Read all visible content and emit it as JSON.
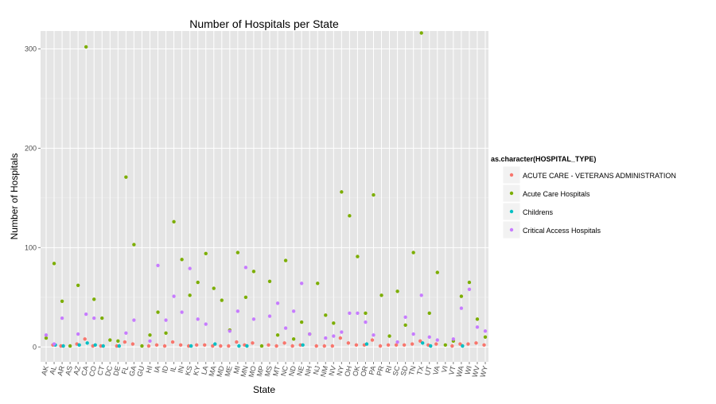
{
  "chart_data": {
    "type": "scatter",
    "title": "Number of Hospitals per State",
    "xlabel": "State",
    "ylabel": "Number of Hospitals",
    "ylim": [
      -15,
      318
    ],
    "yticks": [
      0,
      100,
      200,
      300
    ],
    "grid": true,
    "legend_position": "right",
    "legend_title": "as.character(HOSPITAL_TYPE)",
    "categories": [
      "AK",
      "AL",
      "AR",
      "AS",
      "AZ",
      "CA",
      "CO",
      "CT",
      "DC",
      "DE",
      "FL",
      "GA",
      "GU",
      "HI",
      "IA",
      "ID",
      "IL",
      "IN",
      "KS",
      "KY",
      "LA",
      "MA",
      "MD",
      "ME",
      "MI",
      "MN",
      "MO",
      "MP",
      "MS",
      "MT",
      "NC",
      "ND",
      "NE",
      "NH",
      "NJ",
      "NM",
      "NV",
      "NY",
      "OH",
      "OK",
      "OR",
      "PA",
      "PR",
      "RI",
      "SC",
      "SD",
      "TN",
      "TX",
      "UT",
      "VA",
      "VI",
      "VT",
      "WA",
      "WI",
      "WV",
      "WY"
    ],
    "series": [
      {
        "name": "ACUTE CARE - VETERANS ADMINISTRATION",
        "color": "#f8766d",
        "values": [
          null,
          2,
          1,
          null,
          3,
          8,
          1,
          1,
          null,
          1,
          5,
          3,
          null,
          1,
          2,
          1,
          5,
          2,
          1,
          2,
          2,
          1,
          1,
          1,
          5,
          2,
          4,
          null,
          2,
          1,
          4,
          1,
          2,
          null,
          1,
          1,
          1,
          9,
          4,
          2,
          2,
          7,
          1,
          2,
          2,
          2,
          3,
          6,
          2,
          3,
          null,
          1,
          3,
          3,
          4,
          2
        ]
      },
      {
        "name": "Acute Care Hospitals",
        "color": "#7cae00",
        "values": [
          9,
          84,
          46,
          1,
          62,
          302,
          48,
          29,
          7,
          6,
          171,
          103,
          1,
          12,
          35,
          14,
          126,
          88,
          52,
          65,
          94,
          59,
          47,
          17,
          95,
          50,
          76,
          1,
          66,
          12,
          87,
          8,
          25,
          13,
          64,
          32,
          24,
          156,
          132,
          91,
          34,
          153,
          52,
          11,
          56,
          22,
          95,
          316,
          34,
          75,
          2,
          6,
          51,
          65,
          28,
          10
        ]
      },
      {
        "name": "Childrens",
        "color": "#00bfc4",
        "values": [
          null,
          2,
          1,
          null,
          2,
          4,
          2,
          1,
          null,
          1,
          null,
          null,
          null,
          null,
          null,
          null,
          null,
          null,
          1,
          null,
          null,
          3,
          null,
          null,
          1,
          1,
          null,
          null,
          null,
          null,
          null,
          null,
          2,
          null,
          null,
          null,
          null,
          null,
          null,
          null,
          3,
          null,
          null,
          null,
          null,
          null,
          null,
          4,
          1,
          null,
          null,
          null,
          1,
          null,
          null,
          null
        ]
      },
      {
        "name": "Critical Access Hospitals",
        "color": "#c77cff",
        "values": [
          12,
          3,
          29,
          null,
          13,
          33,
          29,
          null,
          null,
          null,
          14,
          27,
          null,
          6,
          82,
          27,
          51,
          35,
          79,
          28,
          23,
          null,
          null,
          16,
          36,
          80,
          28,
          null,
          31,
          44,
          19,
          36,
          64,
          13,
          null,
          9,
          11,
          15,
          34,
          34,
          25,
          12,
          null,
          null,
          5,
          30,
          13,
          52,
          10,
          7,
          null,
          8,
          39,
          58,
          20,
          16
        ]
      }
    ]
  }
}
